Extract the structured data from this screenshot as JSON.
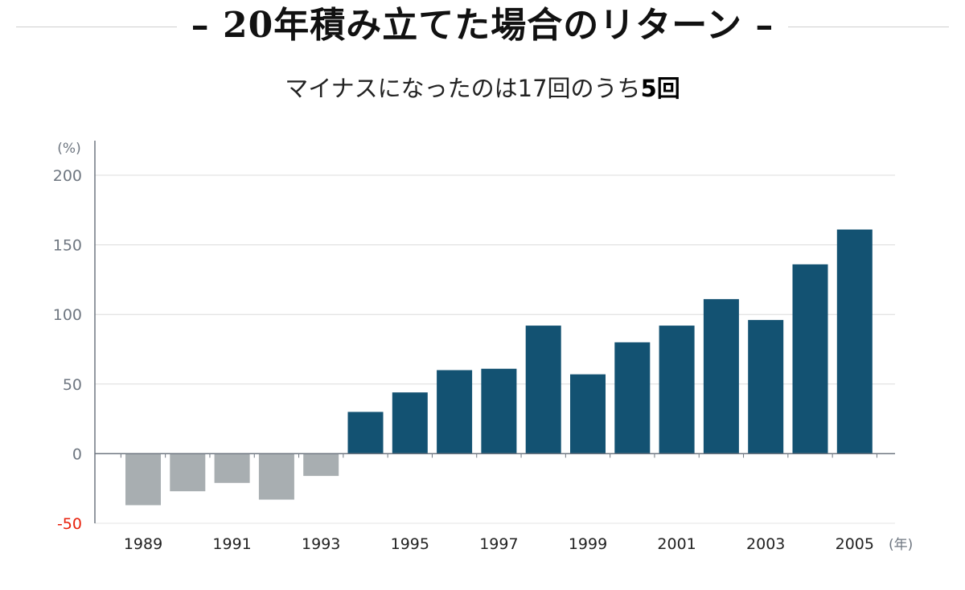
{
  "title": {
    "text": "20年積み立てた場合のリターン",
    "dash_left": "–",
    "dash_right": "–"
  },
  "subtitle": {
    "prefix": "マイナスになったのは17回のうち",
    "highlight": "5回"
  },
  "colors": {
    "positive": "#135272",
    "negative": "#a8aeb1",
    "negative_tick": "#e8210c",
    "axis": "#6e7680",
    "grid": "#dcdcdc"
  },
  "chart_data": {
    "type": "bar",
    "x": [
      1989,
      1990,
      1991,
      1992,
      1993,
      1994,
      1995,
      1996,
      1997,
      1998,
      1999,
      2000,
      2001,
      2002,
      2003,
      2004,
      2005
    ],
    "values": [
      -37,
      -27,
      -21,
      -33,
      -16,
      30,
      44,
      60,
      61,
      92,
      57,
      80,
      92,
      111,
      96,
      136,
      161
    ],
    "x_tick_labels": [
      "1989",
      "1991",
      "1993",
      "1995",
      "1997",
      "1999",
      "2001",
      "2003",
      "2005"
    ],
    "xlabel": "(年)",
    "ylabel": "(%)",
    "ylim": [
      -50,
      200
    ],
    "y_ticks": [
      -50,
      0,
      50,
      100,
      150,
      200
    ],
    "y_tick_labels": [
      "-50",
      "0",
      "50",
      "100",
      "150",
      "200"
    ],
    "grid": true
  }
}
